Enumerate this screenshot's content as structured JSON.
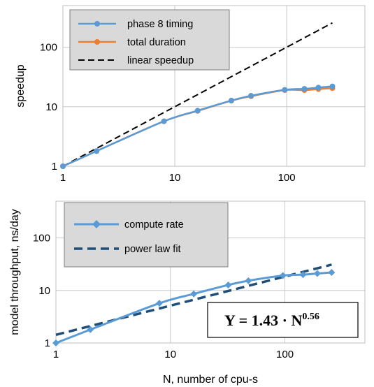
{
  "chart_data": [
    {
      "type": "line",
      "xscale": "log",
      "yscale": "log",
      "xlim": [
        1,
        500
      ],
      "ylim": [
        1,
        500
      ],
      "xticks": [
        1,
        10,
        100
      ],
      "xtick_labels": [
        "1",
        "10",
        "100"
      ],
      "yticks": [
        1,
        10,
        100
      ],
      "ytick_labels": [
        "1",
        "10",
        "100"
      ],
      "ylabel": "speedup",
      "xlabel": "",
      "grid": true,
      "legend_position": "top-left",
      "series": [
        {
          "name": "phase 8 timing",
          "color": "#5b9bd5",
          "marker": "circle",
          "x": [
            1,
            2,
            8,
            16,
            32,
            48,
            96,
            144,
            192,
            256
          ],
          "y": [
            1,
            1.8,
            5.7,
            8.6,
            12.7,
            15.3,
            19.2,
            20.0,
            21.0,
            22.0
          ]
        },
        {
          "name": "total duration",
          "color": "#ed7d31",
          "marker": "circle",
          "x": [
            1,
            2,
            8,
            16,
            32,
            48,
            96,
            144,
            192,
            256
          ],
          "y": [
            1,
            1.8,
            5.7,
            8.5,
            12.6,
            15.0,
            19.0,
            19.0,
            19.8,
            20.5
          ]
        },
        {
          "name": "linear speedup",
          "color": "#000000",
          "dash": true,
          "x": [
            1,
            256
          ],
          "y": [
            1,
            256
          ]
        }
      ]
    },
    {
      "type": "line",
      "xscale": "log",
      "yscale": "log",
      "xlim": [
        1,
        500
      ],
      "ylim": [
        1,
        500
      ],
      "xticks": [
        1,
        10,
        100
      ],
      "xtick_labels": [
        "1",
        "10",
        "100"
      ],
      "yticks": [
        1,
        10,
        100
      ],
      "ytick_labels": [
        "1",
        "10",
        "100"
      ],
      "ylabel": "model throughput, ns/day",
      "xlabel": "N, number of cpu-s",
      "grid": true,
      "legend_position": "top-left",
      "annotation": {
        "prefix": "Y = 1.43 · N",
        "exponent": "0.56"
      },
      "series": [
        {
          "name": "compute rate",
          "color": "#5b9bd5",
          "marker": "diamond",
          "x": [
            1,
            2,
            8,
            16,
            32,
            48,
            96,
            144,
            192,
            256
          ],
          "y": [
            1,
            1.8,
            5.7,
            8.6,
            12.7,
            15.3,
            19.2,
            20.0,
            21.0,
            22.0
          ]
        },
        {
          "name": "power law fit",
          "color": "#1f4e79",
          "dash": true,
          "x": [
            1,
            256
          ],
          "y": [
            1.43,
            31.0
          ]
        }
      ]
    }
  ]
}
